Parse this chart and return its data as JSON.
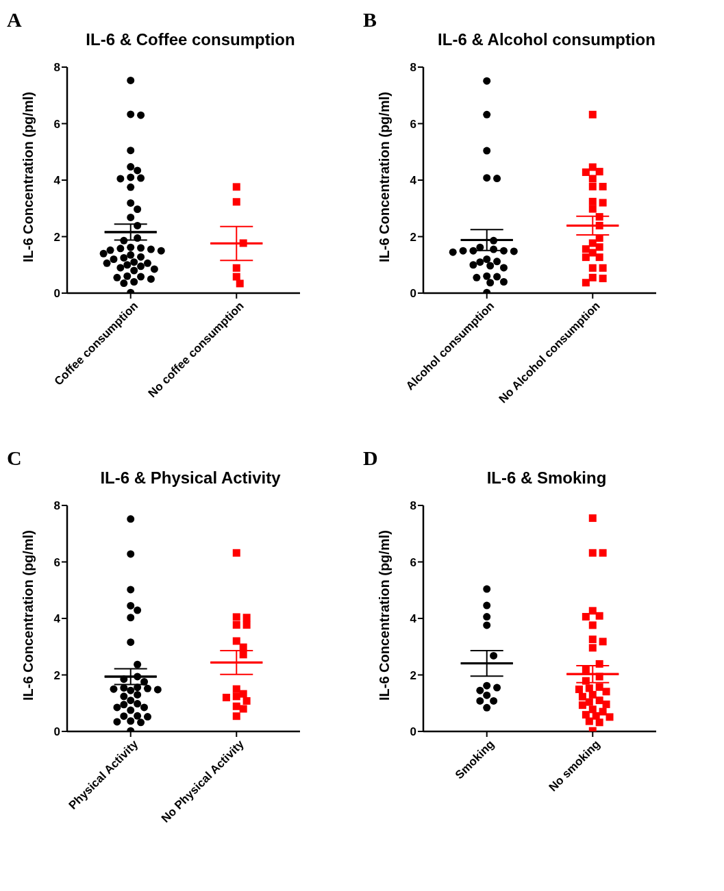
{
  "chart_data": [
    {
      "type": "scatter",
      "annotations": [
        "A"
      ],
      "title": "IL-6 & Coffee consumption",
      "ylabel": "IL-6 Concentration (pg/ml)",
      "categories": [
        "Coffee consumption",
        "No coffee consumption"
      ],
      "ylim": [
        0,
        8
      ],
      "yticks": [
        0,
        2,
        4,
        6,
        8
      ],
      "series": [
        {
          "type": "scatter",
          "marker": "circle",
          "color": "#000000",
          "x": [
            "Coffee consumption",
            "Coffee consumption",
            "Coffee consumption",
            "Coffee consumption",
            "Coffee consumption",
            "Coffee consumption",
            "Coffee consumption",
            "Coffee consumption",
            "Coffee consumption",
            "Coffee consumption",
            "Coffee consumption",
            "Coffee consumption",
            "Coffee consumption",
            "Coffee consumption",
            "Coffee consumption",
            "Coffee consumption",
            "Coffee consumption",
            "Coffee consumption",
            "Coffee consumption",
            "Coffee consumption",
            "Coffee consumption",
            "Coffee consumption",
            "Coffee consumption",
            "Coffee consumption",
            "Coffee consumption",
            "Coffee consumption",
            "Coffee consumption",
            "Coffee consumption",
            "Coffee consumption",
            "Coffee consumption",
            "Coffee consumption",
            "Coffee consumption",
            "Coffee consumption",
            "Coffee consumption",
            "Coffee consumption",
            "Coffee consumption",
            "Coffee consumption",
            "Coffee consumption",
            "Coffee consumption",
            "Coffee consumption",
            "Coffee consumption",
            "Coffee consumption"
          ],
          "values": [
            7.53,
            6.33,
            6.3,
            5.05,
            4.47,
            4.34,
            4.1,
            4.07,
            4.05,
            3.75,
            3.19,
            2.97,
            2.68,
            2.39,
            1.95,
            1.86,
            1.62,
            1.6,
            1.58,
            1.55,
            1.52,
            1.5,
            1.4,
            1.35,
            1.28,
            1.25,
            1.2,
            1.1,
            1.06,
            1.06,
            1.0,
            0.95,
            0.9,
            0.85,
            0.8,
            0.6,
            0.58,
            0.55,
            0.5,
            0.4,
            0.35,
            0.02
          ]
        },
        {
          "type": "scatter",
          "marker": "square",
          "color": "#ff0000",
          "x": [
            "No coffee consumption",
            "No coffee consumption",
            "No coffee consumption",
            "No coffee consumption",
            "No coffee consumption",
            "No coffee consumption"
          ],
          "values": [
            3.76,
            3.23,
            1.77,
            0.89,
            0.58,
            0.34
          ]
        },
        {
          "type": "box",
          "color": "#000000",
          "boxes": [
            {
              "low": 1.88,
              "q1": 2.16,
              "median": 2.16,
              "q3": 2.16,
              "high": 2.44
            },
            null
          ]
        },
        {
          "type": "box",
          "color": "#ff0000",
          "boxes": [
            null,
            {
              "low": 1.16,
              "q1": 1.76,
              "median": 1.76,
              "q3": 1.76,
              "high": 2.36
            }
          ]
        }
      ]
    },
    {
      "type": "scatter",
      "annotations": [
        "B"
      ],
      "title": "IL-6 & Alcohol consumption",
      "ylabel": "IL-6 Concentration (pg/ml)",
      "categories": [
        "Alcohol consumption",
        "No Alcohol consumption"
      ],
      "ylim": [
        0,
        8
      ],
      "yticks": [
        0,
        2,
        4,
        6,
        8
      ],
      "series": [
        {
          "type": "scatter",
          "marker": "circle",
          "color": "#000000",
          "x": [
            "Alcohol consumption",
            "Alcohol consumption",
            "Alcohol consumption",
            "Alcohol consumption",
            "Alcohol consumption",
            "Alcohol consumption",
            "Alcohol consumption",
            "Alcohol consumption",
            "Alcohol consumption",
            "Alcohol consumption",
            "Alcohol consumption",
            "Alcohol consumption",
            "Alcohol consumption",
            "Alcohol consumption",
            "Alcohol consumption",
            "Alcohol consumption",
            "Alcohol consumption",
            "Alcohol consumption",
            "Alcohol consumption",
            "Alcohol consumption",
            "Alcohol consumption",
            "Alcohol consumption",
            "Alcohol consumption",
            "Alcohol consumption",
            "Alcohol consumption"
          ],
          "values": [
            7.51,
            6.32,
            5.04,
            4.08,
            4.06,
            1.86,
            1.62,
            1.55,
            1.5,
            1.5,
            1.5,
            1.48,
            1.45,
            1.2,
            1.12,
            1.1,
            1.0,
            0.97,
            0.9,
            0.6,
            0.58,
            0.55,
            0.4,
            0.37,
            0.02
          ]
        },
        {
          "type": "scatter",
          "marker": "square",
          "color": "#ff0000",
          "x": [
            "No Alcohol consumption",
            "No Alcohol consumption",
            "No Alcohol consumption",
            "No Alcohol consumption",
            "No Alcohol consumption",
            "No Alcohol consumption",
            "No Alcohol consumption",
            "No Alcohol consumption",
            "No Alcohol consumption",
            "No Alcohol consumption",
            "No Alcohol consumption",
            "No Alcohol consumption",
            "No Alcohol consumption",
            "No Alcohol consumption",
            "No Alcohol consumption",
            "No Alcohol consumption",
            "No Alcohol consumption",
            "No Alcohol consumption",
            "No Alcohol consumption",
            "No Alcohol consumption",
            "No Alcohol consumption",
            "No Alcohol consumption",
            "No Alcohol consumption",
            "No Alcohol consumption"
          ],
          "values": [
            6.32,
            4.46,
            4.3,
            4.28,
            4.05,
            3.77,
            3.77,
            3.24,
            3.2,
            2.98,
            2.7,
            2.39,
            1.95,
            1.77,
            1.63,
            1.56,
            1.43,
            1.27,
            1.27,
            0.89,
            0.89,
            0.55,
            0.52,
            0.37
          ]
        },
        {
          "type": "box",
          "color": "#000000",
          "boxes": [
            {
              "low": 1.51,
              "q1": 1.88,
              "median": 1.88,
              "q3": 1.88,
              "high": 2.25
            },
            null
          ]
        },
        {
          "type": "box",
          "color": "#ff0000",
          "boxes": [
            null,
            {
              "low": 2.06,
              "q1": 2.39,
              "median": 2.39,
              "q3": 2.39,
              "high": 2.72
            }
          ]
        }
      ]
    },
    {
      "type": "scatter",
      "annotations": [
        "C"
      ],
      "title": "IL-6 & Physical Activity",
      "ylabel": "IL-6 Concentration (pg/ml)",
      "categories": [
        "Physical Activity",
        "No Physical Activity"
      ],
      "ylim": [
        0,
        8
      ],
      "yticks": [
        0,
        2,
        4,
        6,
        8
      ],
      "series": [
        {
          "type": "scatter",
          "marker": "circle",
          "color": "#000000",
          "x": [
            "Physical Activity",
            "Physical Activity",
            "Physical Activity",
            "Physical Activity",
            "Physical Activity",
            "Physical Activity",
            "Physical Activity",
            "Physical Activity",
            "Physical Activity",
            "Physical Activity",
            "Physical Activity",
            "Physical Activity",
            "Physical Activity",
            "Physical Activity",
            "Physical Activity",
            "Physical Activity",
            "Physical Activity",
            "Physical Activity",
            "Physical Activity",
            "Physical Activity",
            "Physical Activity",
            "Physical Activity",
            "Physical Activity",
            "Physical Activity",
            "Physical Activity",
            "Physical Activity",
            "Physical Activity",
            "Physical Activity",
            "Physical Activity",
            "Physical Activity",
            "Physical Activity",
            "Physical Activity"
          ],
          "values": [
            7.52,
            6.28,
            5.02,
            4.45,
            4.29,
            4.03,
            3.16,
            2.37,
            1.94,
            1.85,
            1.76,
            1.56,
            1.54,
            1.52,
            1.5,
            1.48,
            1.45,
            1.3,
            1.24,
            1.1,
            0.98,
            0.95,
            0.85,
            0.85,
            0.75,
            0.55,
            0.54,
            0.52,
            0.37,
            0.34,
            0.32,
            0.02
          ]
        },
        {
          "type": "scatter",
          "marker": "square",
          "color": "#ff0000",
          "x": [
            "No Physical Activity",
            "No Physical Activity",
            "No Physical Activity",
            "No Physical Activity",
            "No Physical Activity",
            "No Physical Activity",
            "No Physical Activity",
            "No Physical Activity",
            "No Physical Activity",
            "No Physical Activity",
            "No Physical Activity",
            "No Physical Activity",
            "No Physical Activity",
            "No Physical Activity",
            "No Physical Activity",
            "No Physical Activity"
          ],
          "values": [
            6.32,
            4.05,
            4.03,
            3.77,
            3.77,
            3.2,
            2.98,
            2.72,
            1.5,
            1.33,
            1.24,
            1.2,
            1.08,
            0.89,
            0.8,
            0.54
          ]
        },
        {
          "type": "box",
          "color": "#000000",
          "boxes": [
            {
              "low": 1.66,
              "q1": 1.94,
              "median": 1.94,
              "q3": 1.94,
              "high": 2.22
            },
            null
          ]
        },
        {
          "type": "box",
          "color": "#ff0000",
          "boxes": [
            null,
            {
              "low": 2.02,
              "q1": 2.44,
              "median": 2.44,
              "q3": 2.44,
              "high": 2.86
            }
          ]
        }
      ]
    },
    {
      "type": "scatter",
      "annotations": [
        "D"
      ],
      "title": "IL-6 & Smoking",
      "ylabel": "IL-6 Concentration (pg/ml)",
      "categories": [
        "Smoking",
        "No smoking"
      ],
      "ylim": [
        0,
        8
      ],
      "yticks": [
        0,
        2,
        4,
        6,
        8
      ],
      "series": [
        {
          "type": "scatter",
          "marker": "circle",
          "color": "#000000",
          "x": [
            "Smoking",
            "Smoking",
            "Smoking",
            "Smoking",
            "Smoking",
            "Smoking",
            "Smoking",
            "Smoking",
            "Smoking",
            "Smoking",
            "Smoking",
            "Smoking"
          ],
          "values": [
            5.04,
            4.46,
            4.06,
            3.76,
            2.68,
            1.62,
            1.55,
            1.45,
            1.28,
            1.08,
            1.08,
            0.84
          ]
        },
        {
          "type": "scatter",
          "marker": "square",
          "color": "#ff0000",
          "x": [
            "No smoking",
            "No smoking",
            "No smoking",
            "No smoking",
            "No smoking",
            "No smoking",
            "No smoking",
            "No smoking",
            "No smoking",
            "No smoking",
            "No smoking",
            "No smoking",
            "No smoking",
            "No smoking",
            "No smoking",
            "No smoking",
            "No smoking",
            "No smoking",
            "No smoking",
            "No smoking",
            "No smoking",
            "No smoking",
            "No smoking",
            "No smoking",
            "No smoking",
            "No smoking",
            "No smoking",
            "No smoking",
            "No smoking",
            "No smoking",
            "No smoking",
            "No smoking"
          ],
          "values": [
            7.55,
            6.32,
            6.32,
            4.27,
            4.09,
            4.06,
            3.76,
            3.26,
            3.18,
            2.96,
            2.39,
            2.17,
            1.94,
            1.79,
            1.57,
            1.53,
            1.49,
            1.41,
            1.3,
            1.23,
            1.1,
            1.04,
            0.96,
            0.93,
            0.78,
            0.7,
            0.59,
            0.55,
            0.51,
            0.36,
            0.32,
            0.02
          ]
        },
        {
          "type": "box",
          "color": "#000000",
          "boxes": [
            {
              "low": 1.96,
              "q1": 2.41,
              "median": 2.41,
              "q3": 2.41,
              "high": 2.86
            },
            null
          ]
        },
        {
          "type": "box",
          "color": "#ff0000",
          "boxes": [
            null,
            {
              "low": 1.73,
              "q1": 2.03,
              "median": 2.03,
              "q3": 2.03,
              "high": 2.33
            }
          ]
        }
      ]
    }
  ]
}
